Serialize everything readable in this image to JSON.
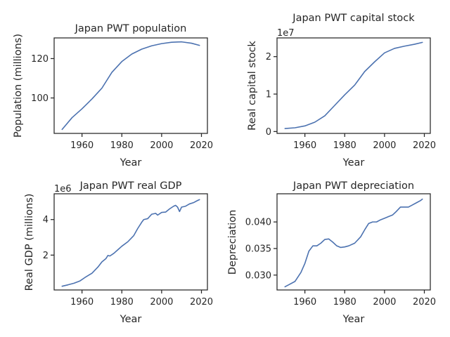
{
  "chart_data": [
    {
      "type": "line",
      "title": "Japan PWT population",
      "xlabel": "Year",
      "ylabel": "Population (millions)",
      "offset_label": "",
      "xlim": [
        1946,
        2023
      ],
      "ylim": [
        82,
        130.5
      ],
      "xticks": [
        1960,
        1980,
        2000,
        2020
      ],
      "xtick_labels": [
        "1960",
        "1980",
        "2000",
        "2020"
      ],
      "yticks": [
        100,
        120
      ],
      "ytick_labels": [
        "100",
        "120"
      ],
      "color": "#4c72b0",
      "series": [
        {
          "x": [
            1950,
            1955,
            1960,
            1965,
            1970,
            1975,
            1980,
            1985,
            1990,
            1995,
            2000,
            2005,
            2010,
            2015,
            2019
          ],
          "y": [
            84,
            90,
            94.5,
            99.5,
            105,
            113,
            118.5,
            122.3,
            124.8,
            126.5,
            127.6,
            128.3,
            128.5,
            127.8,
            126.7
          ]
        }
      ]
    },
    {
      "type": "line",
      "title": "Japan PWT capital stock",
      "xlabel": "Year",
      "ylabel": "Real capital stock",
      "offset_label": "1e7",
      "xlim": [
        1946,
        2023
      ],
      "ylim": [
        -0.05,
        2.5
      ],
      "xticks": [
        1960,
        1980,
        2000,
        2020
      ],
      "xtick_labels": [
        "1960",
        "1980",
        "2000",
        "2020"
      ],
      "yticks": [
        0,
        1,
        2
      ],
      "ytick_labels": [
        "0",
        "1",
        "2"
      ],
      "color": "#4c72b0",
      "series": [
        {
          "x": [
            1950,
            1955,
            1960,
            1965,
            1970,
            1975,
            1980,
            1985,
            1990,
            1995,
            2000,
            2005,
            2010,
            2015,
            2019
          ],
          "y": [
            0.08,
            0.1,
            0.15,
            0.25,
            0.42,
            0.7,
            0.98,
            1.24,
            1.6,
            1.86,
            2.1,
            2.22,
            2.28,
            2.33,
            2.38
          ]
        }
      ]
    },
    {
      "type": "line",
      "title": "Japan PWT real GDP",
      "xlabel": "Year",
      "ylabel": "Real GDP (millions)",
      "offset_label": "1e6",
      "xlim": [
        1946,
        2023
      ],
      "ylim": [
        0.04,
        5.45
      ],
      "xticks": [
        1960,
        1980,
        2000,
        2020
      ],
      "xtick_labels": [
        "1960",
        "1980",
        "2000",
        "2020"
      ],
      "yticks": [
        2,
        4
      ],
      "ytick_labels": [
        "2",
        "4"
      ],
      "color": "#4c72b0",
      "series": [
        {
          "x": [
            1950,
            1953,
            1956,
            1959,
            1962,
            1965,
            1968,
            1970,
            1972,
            1973,
            1974,
            1976,
            1978,
            1980,
            1983,
            1986,
            1988,
            1990,
            1991,
            1993,
            1995,
            1997,
            1998,
            2000,
            2002,
            2004,
            2006,
            2007,
            2008,
            2009,
            2010,
            2012,
            2014,
            2016,
            2018,
            2019
          ],
          "y": [
            0.25,
            0.33,
            0.42,
            0.55,
            0.78,
            0.98,
            1.33,
            1.62,
            1.8,
            1.98,
            1.95,
            2.1,
            2.3,
            2.5,
            2.75,
            3.1,
            3.5,
            3.85,
            4.0,
            4.05,
            4.3,
            4.35,
            4.25,
            4.4,
            4.42,
            4.6,
            4.75,
            4.8,
            4.7,
            4.45,
            4.7,
            4.75,
            4.88,
            4.95,
            5.07,
            5.12
          ]
        }
      ]
    },
    {
      "type": "line",
      "title": "Japan PWT depreciation",
      "xlabel": "Year",
      "ylabel": "Depreciation",
      "offset_label": "",
      "xlim": [
        1946,
        2023
      ],
      "ylim": [
        0.0272,
        0.0453
      ],
      "xticks": [
        1960,
        1980,
        2000,
        2020
      ],
      "xtick_labels": [
        "1960",
        "1980",
        "2000",
        "2020"
      ],
      "yticks": [
        0.03,
        0.035,
        0.04
      ],
      "ytick_labels": [
        "0.030",
        "0.035",
        "0.040"
      ],
      "color": "#4c72b0",
      "series": [
        {
          "x": [
            1950,
            1952,
            1955,
            1958,
            1960,
            1962,
            1964,
            1966,
            1968,
            1970,
            1972,
            1974,
            1976,
            1978,
            1980,
            1982,
            1985,
            1988,
            1990,
            1992,
            1994,
            1996,
            1998,
            2000,
            2002,
            2004,
            2006,
            2008,
            2010,
            2012,
            2014,
            2016,
            2018,
            2019
          ],
          "y": [
            0.0278,
            0.0282,
            0.0288,
            0.0305,
            0.0322,
            0.0345,
            0.0355,
            0.0355,
            0.036,
            0.0367,
            0.0368,
            0.0362,
            0.0355,
            0.0352,
            0.0353,
            0.0355,
            0.036,
            0.0372,
            0.0385,
            0.0397,
            0.04,
            0.04,
            0.0404,
            0.0407,
            0.041,
            0.0413,
            0.042,
            0.0428,
            0.0428,
            0.0428,
            0.0432,
            0.0436,
            0.044,
            0.0443
          ]
        }
      ]
    }
  ]
}
